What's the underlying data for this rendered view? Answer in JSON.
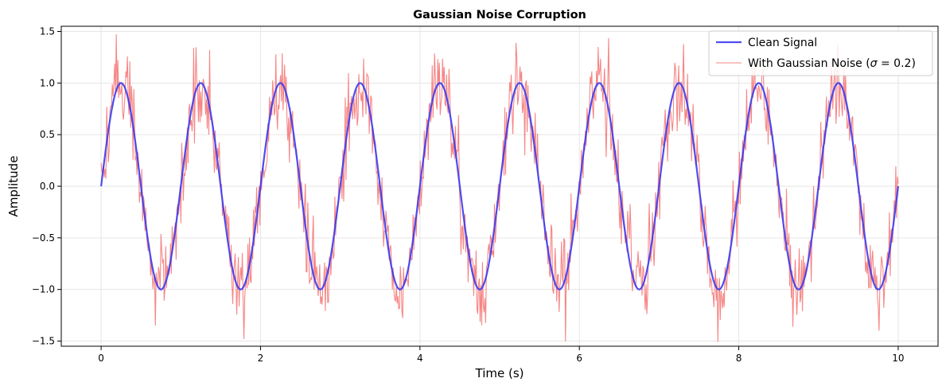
{
  "chart_data": {
    "type": "line",
    "title": "Gaussian Noise Corruption",
    "xlabel": "Time (s)",
    "ylabel": "Amplitude",
    "xlim": [
      -0.5,
      10.5
    ],
    "ylim": [
      -1.55,
      1.55
    ],
    "x_ticks": [
      0,
      2,
      4,
      6,
      8,
      10
    ],
    "x_tick_labels": [
      "0",
      "2",
      "4",
      "6",
      "8",
      "10"
    ],
    "y_ticks": [
      -1.5,
      -1.0,
      -0.5,
      0.0,
      0.5,
      1.0,
      1.5
    ],
    "y_tick_labels": [
      "−1.5",
      "−1.0",
      "−0.5",
      "0.0",
      "0.5",
      "1.0",
      "1.5"
    ],
    "grid": true,
    "legend_position": "top-right",
    "signal": {
      "function": "sin(2*pi*f*t)",
      "frequency_hz": 1.0,
      "amplitude": 1.0,
      "t_start": 0,
      "t_end": 10,
      "n_points": 1000
    },
    "series": [
      {
        "name": "Clean Signal",
        "color": "#3b3bf0",
        "kind": "clean"
      },
      {
        "name": "With Gaussian Noise (",
        "name_sigma": "σ",
        "name_suffix": " = 0.2)",
        "color": "#f03b3b",
        "kind": "noisy",
        "noise_sigma": 0.2
      }
    ]
  }
}
